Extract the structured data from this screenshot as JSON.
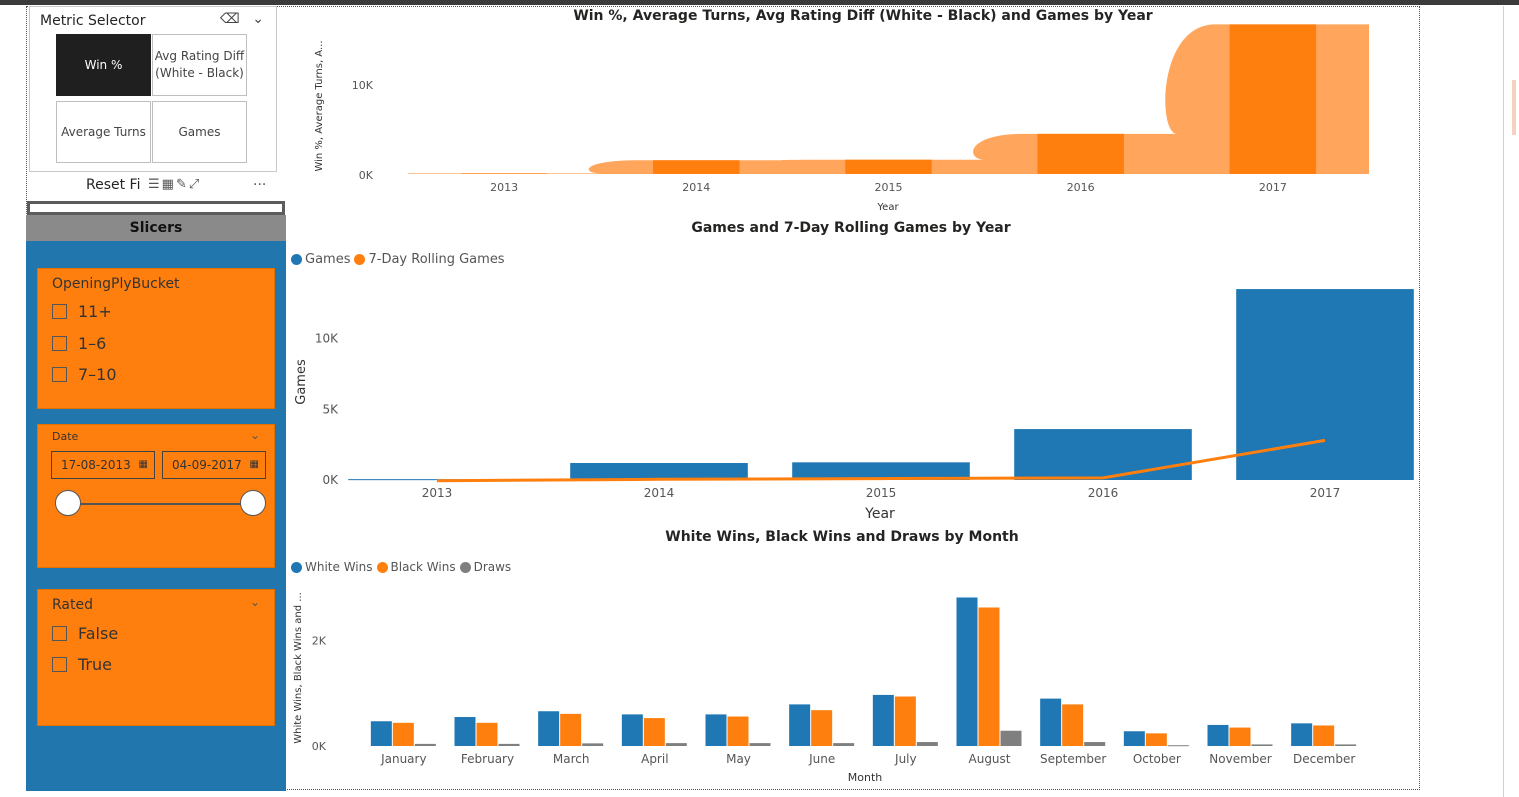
{
  "metric_selector": {
    "title": "Metric Selector",
    "tiles": [
      "Win %",
      "Avg Rating Diff (White - Black)",
      "Average Turns",
      "Games"
    ],
    "active": "Win %",
    "reset_label": "Reset Fi"
  },
  "slicers": {
    "header": "Slicers",
    "opening_ply": {
      "title": "OpeningPlyBucket",
      "options": [
        "11+",
        "1–6",
        "7–10"
      ]
    },
    "date": {
      "title": "Date",
      "start": "17-08-2013",
      "end": "04-09-2017"
    },
    "rated": {
      "title": "Rated",
      "options": [
        "False",
        "True"
      ]
    }
  },
  "colors": {
    "blue": "#1f77b4",
    "orange": "#ff7f0e",
    "light_orange": "#ffa65c",
    "gray": "#7f7f7f",
    "slicer_blue": "#2176ae"
  },
  "chart_data": [
    {
      "type": "area",
      "title": "Win %, Average Turns, Avg Rating Diff (White - Black) and Games  by Year",
      "xlabel": "Year",
      "ylabel": "Win %, Average Turns, A...",
      "categories": [
        "2013",
        "2014",
        "2015",
        "2016",
        "2017"
      ],
      "series": [
        {
          "name": "Games",
          "values": [
            60,
            1250,
            1300,
            3650,
            13600
          ]
        }
      ],
      "ylim": [
        0,
        14000
      ],
      "yticks": [
        "0K",
        "10K"
      ],
      "grid": false
    },
    {
      "type": "bar",
      "title": "Games and 7-Day Rolling Games by Year",
      "xlabel": "Year",
      "ylabel": "Games",
      "categories": [
        "2013",
        "2014",
        "2015",
        "2016",
        "2017"
      ],
      "series": [
        {
          "name": "Games",
          "values": [
            60,
            1200,
            1250,
            3600,
            13500
          ]
        },
        {
          "name": "7-Day Rolling Games",
          "values": [
            -50,
            50,
            100,
            150,
            2800
          ]
        }
      ],
      "ylim": [
        0,
        14000
      ],
      "yticks": [
        "0K",
        "5K",
        "10K"
      ],
      "legend": "top-left"
    },
    {
      "type": "bar",
      "title": "White Wins, Black Wins and Draws by Month",
      "xlabel": "Month",
      "ylabel": "White Wins, Black Wins and ...",
      "categories": [
        "January",
        "February",
        "March",
        "April",
        "May",
        "June",
        "July",
        "August",
        "September",
        "October",
        "November",
        "December"
      ],
      "series": [
        {
          "name": "White Wins",
          "values": [
            470,
            550,
            660,
            600,
            600,
            790,
            970,
            2820,
            900,
            280,
            400,
            430
          ]
        },
        {
          "name": "Black Wins",
          "values": [
            440,
            440,
            610,
            530,
            560,
            680,
            940,
            2630,
            790,
            240,
            350,
            390
          ]
        },
        {
          "name": "Draws",
          "values": [
            40,
            40,
            50,
            55,
            55,
            55,
            75,
            290,
            75,
            15,
            30,
            30
          ]
        }
      ],
      "ylim": [
        0,
        3000
      ],
      "yticks": [
        "0K",
        "2K"
      ],
      "legend": "top-left"
    }
  ]
}
